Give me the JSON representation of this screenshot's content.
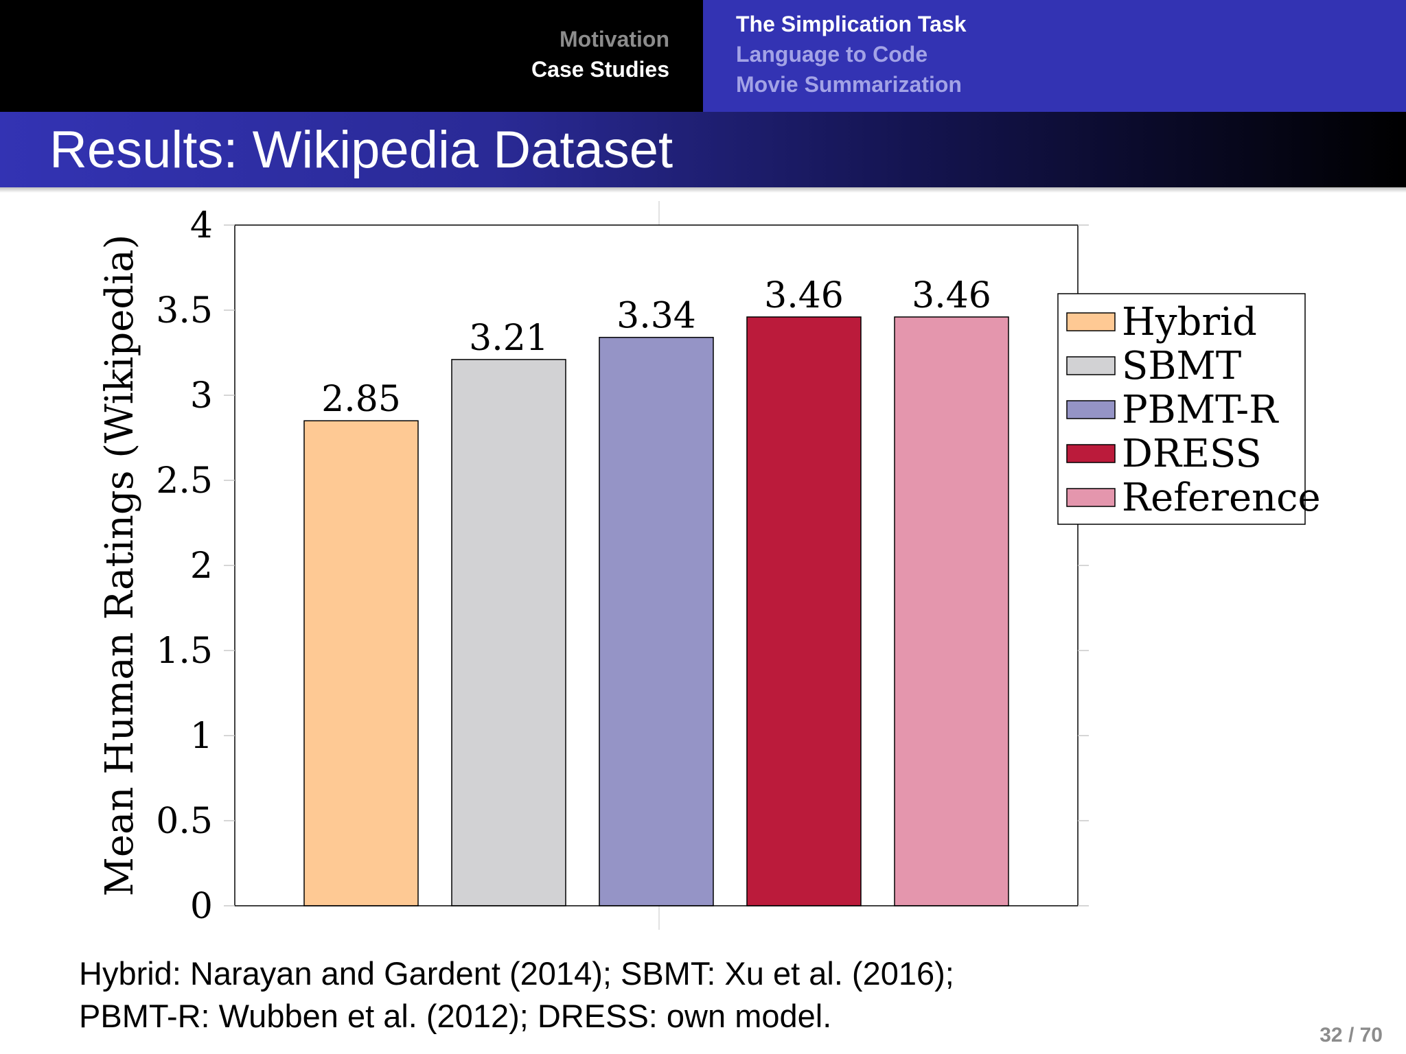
{
  "nav": {
    "sections": [
      "Motivation",
      "Case Studies"
    ],
    "subsections": [
      "The Simplication Task",
      "Language to Code",
      "Movie Summarization"
    ]
  },
  "frame_title": "Results: Wikipedia Dataset",
  "footnote": {
    "line1": "Hybrid: Narayan and Gardent (2014); SBMT: Xu et al. (2016);",
    "line2": "PBMT-R: Wubben et al. (2012); DRESS: own model."
  },
  "page_number": "32 / 70",
  "colors": {
    "section_active": "#ffffff",
    "section_inactive": "#8c8c8c",
    "subsection_active": "#ffffff",
    "subsection_inactive": "#a3a3e6",
    "theme_blue": "#3333b3"
  },
  "chart_data": {
    "type": "bar",
    "ylabel": "Mean Human Ratings (Wikipedia)",
    "ylim": [
      0,
      4
    ],
    "yticks": [
      0,
      0.5,
      1,
      1.5,
      2,
      2.5,
      3,
      3.5,
      4
    ],
    "ytick_labels": [
      "0",
      "0.5",
      "1",
      "1.5",
      "2",
      "2.5",
      "3",
      "3.5",
      "4"
    ],
    "legend_position": "right",
    "grid": false,
    "series": [
      {
        "name": "Hybrid",
        "value": 2.85,
        "label": "2.85",
        "color": "#fec994"
      },
      {
        "name": "SBMT",
        "value": 3.21,
        "label": "3.21",
        "color": "#d2d2d4"
      },
      {
        "name": "PBMT-R",
        "value": 3.34,
        "label": "3.34",
        "color": "#9594c6"
      },
      {
        "name": "DRESS",
        "value": 3.46,
        "label": "3.46",
        "color": "#bb1b3b"
      },
      {
        "name": "Reference",
        "value": 3.46,
        "label": "3.46",
        "color": "#e496ad"
      }
    ]
  }
}
